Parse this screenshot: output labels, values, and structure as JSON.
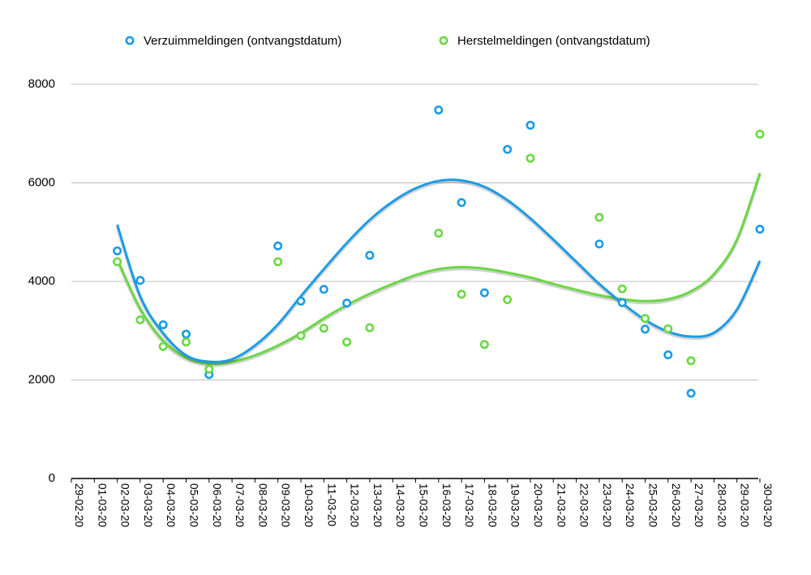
{
  "chart_data": {
    "type": "scatter",
    "x_dates": [
      "29-02-20",
      "01-03-20",
      "02-03-20",
      "03-03-20",
      "04-03-20",
      "05-03-20",
      "06-03-20",
      "07-03-20",
      "08-03-20",
      "09-03-20",
      "10-03-20",
      "11-03-20",
      "12-03-20",
      "13-03-20",
      "14-03-20",
      "15-03-20",
      "16-03-20",
      "17-03-20",
      "18-03-20",
      "19-03-20",
      "20-03-20",
      "21-03-20",
      "22-03-20",
      "23-03-20",
      "24-03-20",
      "25-03-20",
      "26-03-20",
      "27-03-20",
      "28-03-20",
      "29-03-20",
      "30-03-20"
    ],
    "ylim": [
      0,
      8000
    ],
    "yticks": [
      0,
      2000,
      4000,
      6000,
      8000
    ],
    "grid": true,
    "legend_position": "top",
    "trendline": "polynomial",
    "series": [
      {
        "name": "Verzuimmeldingen (ontvangstdatum)",
        "color": "#1a9be8",
        "points": [
          {
            "x": "02-03-20",
            "y": 4620
          },
          {
            "x": "03-03-20",
            "y": 4020
          },
          {
            "x": "04-03-20",
            "y": 3120
          },
          {
            "x": "05-03-20",
            "y": 2930
          },
          {
            "x": "06-03-20",
            "y": 2110
          },
          {
            "x": "09-03-20",
            "y": 4720
          },
          {
            "x": "10-03-20",
            "y": 3600
          },
          {
            "x": "11-03-20",
            "y": 3840
          },
          {
            "x": "12-03-20",
            "y": 3560
          },
          {
            "x": "13-03-20",
            "y": 4530
          },
          {
            "x": "16-03-20",
            "y": 7480
          },
          {
            "x": "17-03-20",
            "y": 5600
          },
          {
            "x": "18-03-20",
            "y": 3770
          },
          {
            "x": "19-03-20",
            "y": 6680
          },
          {
            "x": "20-03-20",
            "y": 7170
          },
          {
            "x": "23-03-20",
            "y": 4760
          },
          {
            "x": "24-03-20",
            "y": 3570
          },
          {
            "x": "25-03-20",
            "y": 3030
          },
          {
            "x": "26-03-20",
            "y": 2510
          },
          {
            "x": "27-03-20",
            "y": 1730
          },
          {
            "x": "30-03-20",
            "y": 5060
          }
        ],
        "trend": [
          {
            "x": "02-03-20",
            "y": 5150
          },
          {
            "x": "03-03-20",
            "y": 3700
          },
          {
            "x": "04-03-20",
            "y": 2950
          },
          {
            "x": "05-03-20",
            "y": 2500
          },
          {
            "x": "06-03-20",
            "y": 2370
          },
          {
            "x": "07-03-20",
            "y": 2420
          },
          {
            "x": "08-03-20",
            "y": 2700
          },
          {
            "x": "09-03-20",
            "y": 3130
          },
          {
            "x": "10-03-20",
            "y": 3700
          },
          {
            "x": "11-03-20",
            "y": 4250
          },
          {
            "x": "12-03-20",
            "y": 4780
          },
          {
            "x": "13-03-20",
            "y": 5250
          },
          {
            "x": "14-03-20",
            "y": 5620
          },
          {
            "x": "15-03-20",
            "y": 5890
          },
          {
            "x": "16-03-20",
            "y": 6040
          },
          {
            "x": "17-03-20",
            "y": 6050
          },
          {
            "x": "18-03-20",
            "y": 5920
          },
          {
            "x": "19-03-20",
            "y": 5650
          },
          {
            "x": "20-03-20",
            "y": 5280
          },
          {
            "x": "21-03-20",
            "y": 4850
          },
          {
            "x": "22-03-20",
            "y": 4400
          },
          {
            "x": "23-03-20",
            "y": 3950
          },
          {
            "x": "24-03-20",
            "y": 3560
          },
          {
            "x": "25-03-20",
            "y": 3220
          },
          {
            "x": "26-03-20",
            "y": 2980
          },
          {
            "x": "27-03-20",
            "y": 2880
          },
          {
            "x": "28-03-20",
            "y": 2960
          },
          {
            "x": "29-03-20",
            "y": 3430
          },
          {
            "x": "30-03-20",
            "y": 4420
          }
        ]
      },
      {
        "name": "Herstelmeldingen (ontvangstdatum)",
        "color": "#6bd744",
        "points": [
          {
            "x": "02-03-20",
            "y": 4400
          },
          {
            "x": "03-03-20",
            "y": 3220
          },
          {
            "x": "04-03-20",
            "y": 2680
          },
          {
            "x": "05-03-20",
            "y": 2770
          },
          {
            "x": "06-03-20",
            "y": 2220
          },
          {
            "x": "09-03-20",
            "y": 4400
          },
          {
            "x": "10-03-20",
            "y": 2900
          },
          {
            "x": "11-03-20",
            "y": 3050
          },
          {
            "x": "12-03-20",
            "y": 2770
          },
          {
            "x": "13-03-20",
            "y": 3060
          },
          {
            "x": "16-03-20",
            "y": 4980
          },
          {
            "x": "17-03-20",
            "y": 3740
          },
          {
            "x": "18-03-20",
            "y": 2720
          },
          {
            "x": "19-03-20",
            "y": 3630
          },
          {
            "x": "20-03-20",
            "y": 6500
          },
          {
            "x": "23-03-20",
            "y": 5300
          },
          {
            "x": "24-03-20",
            "y": 3850
          },
          {
            "x": "25-03-20",
            "y": 3250
          },
          {
            "x": "26-03-20",
            "y": 3040
          },
          {
            "x": "27-03-20",
            "y": 2390
          },
          {
            "x": "30-03-20",
            "y": 6990
          }
        ],
        "trend": [
          {
            "x": "02-03-20",
            "y": 4450
          },
          {
            "x": "03-03-20",
            "y": 3450
          },
          {
            "x": "04-03-20",
            "y": 2800
          },
          {
            "x": "05-03-20",
            "y": 2450
          },
          {
            "x": "06-03-20",
            "y": 2330
          },
          {
            "x": "07-03-20",
            "y": 2370
          },
          {
            "x": "08-03-20",
            "y": 2500
          },
          {
            "x": "09-03-20",
            "y": 2700
          },
          {
            "x": "10-03-20",
            "y": 2950
          },
          {
            "x": "11-03-20",
            "y": 3250
          },
          {
            "x": "12-03-20",
            "y": 3520
          },
          {
            "x": "13-03-20",
            "y": 3750
          },
          {
            "x": "14-03-20",
            "y": 3950
          },
          {
            "x": "15-03-20",
            "y": 4130
          },
          {
            "x": "16-03-20",
            "y": 4250
          },
          {
            "x": "17-03-20",
            "y": 4290
          },
          {
            "x": "18-03-20",
            "y": 4260
          },
          {
            "x": "19-03-20",
            "y": 4180
          },
          {
            "x": "20-03-20",
            "y": 4080
          },
          {
            "x": "21-03-20",
            "y": 3950
          },
          {
            "x": "22-03-20",
            "y": 3830
          },
          {
            "x": "23-03-20",
            "y": 3720
          },
          {
            "x": "24-03-20",
            "y": 3640
          },
          {
            "x": "25-03-20",
            "y": 3600
          },
          {
            "x": "26-03-20",
            "y": 3640
          },
          {
            "x": "27-03-20",
            "y": 3800
          },
          {
            "x": "28-03-20",
            "y": 4150
          },
          {
            "x": "29-03-20",
            "y": 4850
          },
          {
            "x": "30-03-20",
            "y": 6200
          }
        ]
      }
    ]
  }
}
